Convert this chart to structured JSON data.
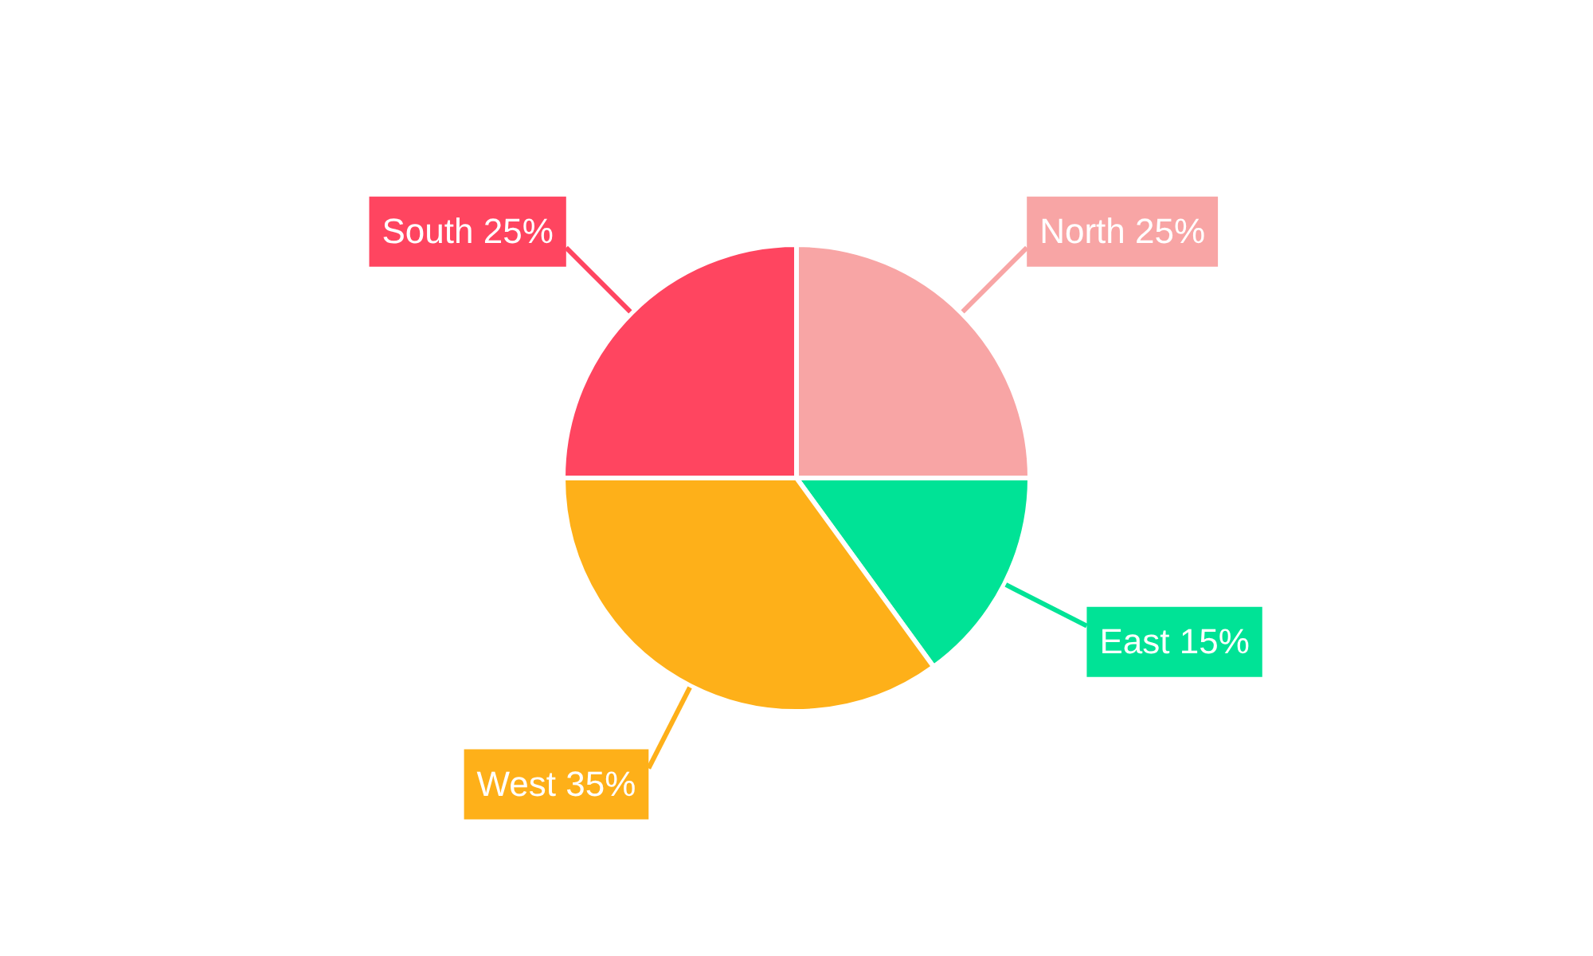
{
  "chart_data": {
    "type": "pie",
    "categories": [
      "North",
      "East",
      "West",
      "South"
    ],
    "values": [
      25,
      15,
      35,
      25
    ],
    "colors": [
      "#f8a5a5",
      "#00e396",
      "#feb019",
      "#ff4560"
    ],
    "value_labels": [
      "25%",
      "15%",
      "35%",
      "25%"
    ],
    "legend": false
  }
}
